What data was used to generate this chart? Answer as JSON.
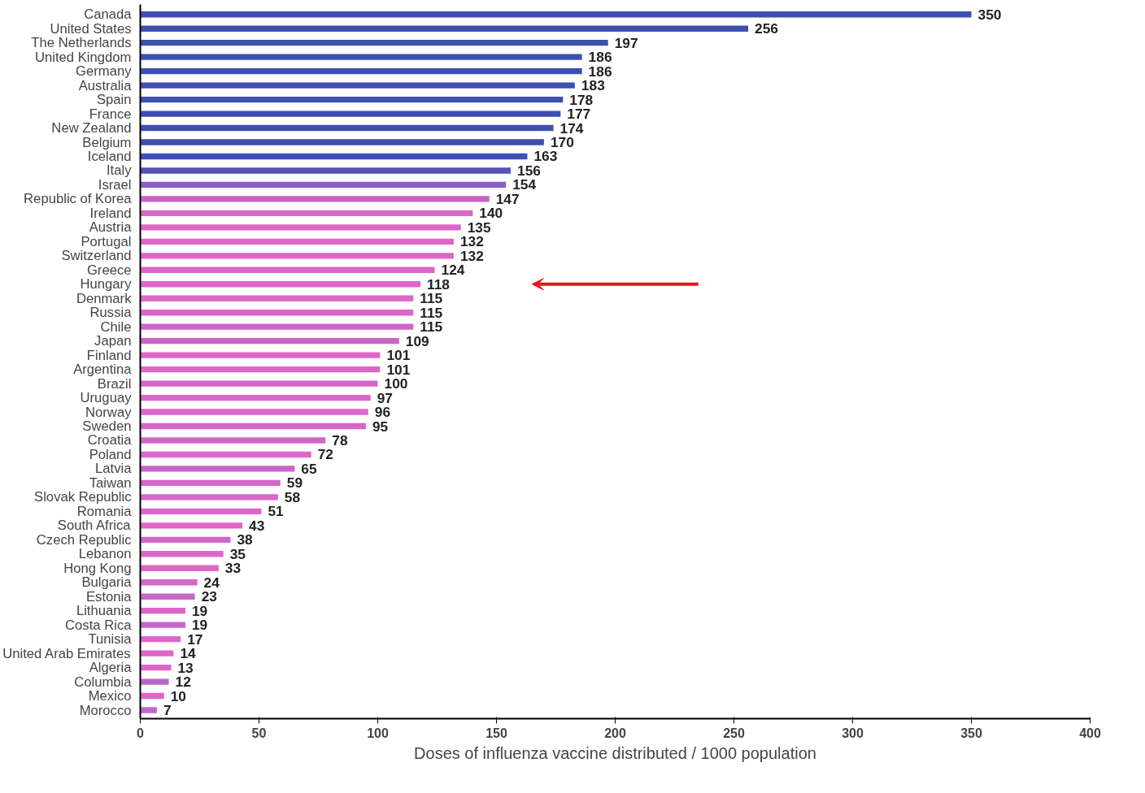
{
  "chart_data": {
    "type": "bar",
    "orientation": "horizontal",
    "xlabel": "Doses of influenza vaccine distributed / 1000 population",
    "categories": [
      "Canada",
      "United States",
      "The Netherlands",
      "United Kingdom",
      "Germany",
      "Australia",
      "Spain",
      "France",
      "New Zealand",
      "Belgium",
      "Iceland",
      "Italy",
      "Israel",
      "Republic of Korea",
      "Ireland",
      "Austria",
      "Portugal",
      "Switzerland",
      "Greece",
      "Hungary",
      "Denmark",
      "Russia",
      "Chile",
      "Japan",
      "Finland",
      "Argentina",
      "Brazil",
      "Uruguay",
      "Norway",
      "Sweden",
      "Croatia",
      "Poland",
      "Latvia",
      "Taiwan",
      "Slovak Republic",
      "Romania",
      "South Africa",
      "Czech Republic",
      "Lebanon",
      "Hong Kong",
      "Bulgaria",
      "Estonia",
      "Lithuania",
      "Costa Rica",
      "Tunisia",
      "United Arab Emirates",
      "Algeria",
      "Columbia",
      "Mexico",
      "Morocco"
    ],
    "values": [
      350,
      256,
      197,
      186,
      186,
      183,
      178,
      177,
      174,
      170,
      163,
      156,
      154,
      147,
      140,
      135,
      132,
      132,
      124,
      118,
      115,
      115,
      115,
      109,
      101,
      101,
      100,
      97,
      96,
      95,
      78,
      72,
      65,
      59,
      58,
      51,
      43,
      38,
      35,
      33,
      24,
      23,
      19,
      19,
      17,
      14,
      13,
      12,
      10,
      7
    ],
    "colors": [
      "#3d4fb0",
      "#3d4fb0",
      "#3d4fb0",
      "#3d4fb0",
      "#3d4fb0",
      "#3d4fb0",
      "#3d4fb0",
      "#3d4fb0",
      "#3d4fb0",
      "#3d4fb0",
      "#3f50b8",
      "#5352bb",
      "#8a5cc8",
      "#c662c8",
      "#d966c8",
      "#dd66c8",
      "#dd66c8",
      "#dd66c8",
      "#dd66c8",
      "#dd66c8",
      "#dd66c8",
      "#dd66c8",
      "#d264c8",
      "#cc64c8",
      "#dd66c8",
      "#dd66c8",
      "#d466c8",
      "#dd66c8",
      "#dd66c8",
      "#d866c8",
      "#d466c8",
      "#dd66c8",
      "#c864c8",
      "#d466c8",
      "#dd66c8",
      "#dd66c8",
      "#dd66c8",
      "#d066c8",
      "#dd66c8",
      "#dd66c8",
      "#d466c8",
      "#c866c8",
      "#dd66c8",
      "#c866c8",
      "#dd66c8",
      "#dd66c8",
      "#dd66c8",
      "#b866c8",
      "#dd66c8",
      "#c066d0"
    ],
    "xlim": [
      0,
      400
    ],
    "xticks": [
      0,
      50,
      100,
      150,
      200,
      250,
      300,
      350,
      400
    ],
    "data_labels": true,
    "grid": false
  }
}
